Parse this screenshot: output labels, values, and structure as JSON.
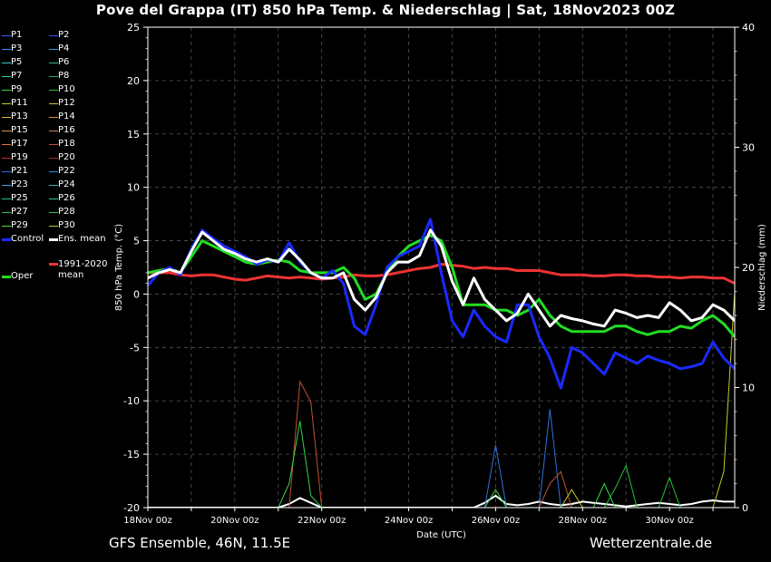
{
  "title": "Pove del Grappa  (IT)  850 hPa Temp. & Niederschlag | Sat, 18Nov2023 00Z",
  "footer": {
    "left": "GFS Ensemble, 46N, 11.5E",
    "right": "Wetterzentrale.de"
  },
  "legend": {
    "items": [
      {
        "label": "P1",
        "color": "#3a5cff"
      },
      {
        "label": "P2",
        "color": "#2f4cff"
      },
      {
        "label": "P3",
        "color": "#3f8fff"
      },
      {
        "label": "P4",
        "color": "#2a9ad8"
      },
      {
        "label": "P5",
        "color": "#33c6d0"
      },
      {
        "label": "P6",
        "color": "#2dbf80"
      },
      {
        "label": "P7",
        "color": "#2fd0a8"
      },
      {
        "label": "P8",
        "color": "#26a860"
      },
      {
        "label": "P9",
        "color": "#34d84a"
      },
      {
        "label": "P10",
        "color": "#22c234"
      },
      {
        "label": "P11",
        "color": "#b8d030"
      },
      {
        "label": "P12",
        "color": "#d8c040"
      },
      {
        "label": "P13",
        "color": "#e0b838"
      },
      {
        "label": "P14",
        "color": "#e0902a"
      },
      {
        "label": "P15",
        "color": "#d89a58"
      },
      {
        "label": "P16",
        "color": "#c88860"
      },
      {
        "label": "P17",
        "color": "#e07848"
      },
      {
        "label": "P18",
        "color": "#c05030"
      },
      {
        "label": "P19",
        "color": "#b83030"
      },
      {
        "label": "P20",
        "color": "#a82020"
      },
      {
        "label": "P21",
        "color": "#3070e0"
      },
      {
        "label": "P22",
        "color": "#2a8ae8"
      },
      {
        "label": "P23",
        "color": "#46a0e0"
      },
      {
        "label": "P24",
        "color": "#30b0c0"
      },
      {
        "label": "P25",
        "color": "#20c088"
      },
      {
        "label": "P26",
        "color": "#28d098"
      },
      {
        "label": "P27",
        "color": "#30b860"
      },
      {
        "label": "P28",
        "color": "#38c050"
      },
      {
        "label": "P29",
        "color": "#60d840"
      },
      {
        "label": "P30",
        "color": "#c8c828"
      },
      {
        "label": "Control",
        "color": "#1a2aff"
      },
      {
        "label": "Ens. mean",
        "color": "#ffffff"
      }
    ],
    "oper": {
      "label": "Oper",
      "color": "#22dd22"
    },
    "climate": {
      "label": "1991-2020 mean",
      "line1": "1991-2020",
      "line2": "mean",
      "color": "#ee3333"
    }
  },
  "chart_data": {
    "type": "line",
    "xlabel": "Date (UTC)",
    "ylabel": "850 hPa Temp. (°C)",
    "y2label": "Niederschlag (mm)",
    "ylim": [
      -20,
      25
    ],
    "yticks": [
      -20,
      -15,
      -10,
      -5,
      0,
      5,
      10,
      15,
      20,
      25
    ],
    "y2lim": [
      0,
      40
    ],
    "y2ticks": [
      0,
      10,
      20,
      30,
      40
    ],
    "xlim": [
      "2023-11-18T00",
      "2023-12-01T12"
    ],
    "xticks": [
      {
        "date": "2023-11-18",
        "label": "18Nov 00z"
      },
      {
        "date": "2023-11-20",
        "label": "20Nov 00z"
      },
      {
        "date": "2023-11-22",
        "label": "22Nov 00z"
      },
      {
        "date": "2023-11-24",
        "label": "24Nov 00z"
      },
      {
        "date": "2023-11-26",
        "label": "26Nov 00z"
      },
      {
        "date": "2023-11-28",
        "label": "28Nov 00z"
      },
      {
        "date": "2023-11-30",
        "label": "30Nov 00z"
      }
    ],
    "grid": true,
    "x": [
      "2023-11-18T00",
      "2023-11-18T06",
      "2023-11-18T12",
      "2023-11-18T18",
      "2023-11-19T00",
      "2023-11-19T06",
      "2023-11-19T12",
      "2023-11-19T18",
      "2023-11-20T00",
      "2023-11-20T06",
      "2023-11-20T12",
      "2023-11-20T18",
      "2023-11-21T00",
      "2023-11-21T06",
      "2023-11-21T12",
      "2023-11-21T18",
      "2023-11-22T00",
      "2023-11-22T06",
      "2023-11-22T12",
      "2023-11-22T18",
      "2023-11-23T00",
      "2023-11-23T06",
      "2023-11-23T12",
      "2023-11-23T18",
      "2023-11-24T00",
      "2023-11-24T06",
      "2023-11-24T12",
      "2023-11-24T18",
      "2023-11-25T00",
      "2023-11-25T06",
      "2023-11-25T12",
      "2023-11-25T18",
      "2023-11-26T00",
      "2023-11-26T06",
      "2023-11-26T12",
      "2023-11-26T18",
      "2023-11-27T00",
      "2023-11-27T06",
      "2023-11-27T12",
      "2023-11-27T18",
      "2023-11-28T00",
      "2023-11-28T06",
      "2023-11-28T12",
      "2023-11-28T18",
      "2023-11-29T00",
      "2023-11-29T06",
      "2023-11-29T12",
      "2023-11-29T18",
      "2023-11-30T00",
      "2023-11-30T06",
      "2023-11-30T12",
      "2023-11-30T18",
      "2023-12-01T00",
      "2023-12-01T06",
      "2023-12-01T12"
    ],
    "temperature_series": [
      {
        "name": "Ens. mean",
        "color": "#ffffff",
        "width": 3,
        "values": [
          1.5,
          2.0,
          2.3,
          2.0,
          4.0,
          5.8,
          5.0,
          4.2,
          3.8,
          3.3,
          3.0,
          3.3,
          3.0,
          4.2,
          3.2,
          2.0,
          1.5,
          1.5,
          2.0,
          -0.5,
          -1.5,
          -0.3,
          2.0,
          3.0,
          3.0,
          3.6,
          6.0,
          4.5,
          1.2,
          -1.0,
          1.5,
          -0.5,
          -1.5,
          -2.5,
          -1.8,
          0.0,
          -1.5,
          -3.0,
          -2.0,
          -2.3,
          -2.5,
          -2.8,
          -3.0,
          -1.5,
          -1.8,
          -2.2,
          -2.0,
          -2.2,
          -0.8,
          -1.5,
          -2.5,
          -2.2,
          -1.0,
          -1.5,
          -2.5
        ]
      },
      {
        "name": "Control",
        "color": "#1a2aff",
        "width": 3,
        "values": [
          0.8,
          2.0,
          2.5,
          1.8,
          4.2,
          6.0,
          5.2,
          4.5,
          4.0,
          3.5,
          2.8,
          3.2,
          3.0,
          4.8,
          3.0,
          2.0,
          1.5,
          2.2,
          1.0,
          -3.0,
          -3.8,
          -1.0,
          2.5,
          3.5,
          4.0,
          4.5,
          7.0,
          2.0,
          -2.5,
          -4.0,
          -1.5,
          -3.0,
          -4.0,
          -4.5,
          -1.0,
          -1.0,
          -4.0,
          -6.0,
          -8.8,
          -5.0,
          -5.5,
          -6.5,
          -7.5,
          -5.5,
          -6.0,
          -6.5,
          -5.8,
          -6.2,
          -6.5,
          -7.0,
          -6.8,
          -6.5,
          -4.5,
          -6.0,
          -7.0
        ]
      },
      {
        "name": "Oper",
        "color": "#22dd22",
        "width": 3,
        "values": [
          2.0,
          2.2,
          2.4,
          2.0,
          3.5,
          5.0,
          4.5,
          4.0,
          3.5,
          3.0,
          2.8,
          3.0,
          3.2,
          3.0,
          2.2,
          2.0,
          2.0,
          2.0,
          2.5,
          1.5,
          -0.5,
          0.0,
          2.0,
          3.5,
          4.5,
          5.0,
          5.5,
          5.0,
          2.5,
          -1.0,
          -1.0,
          -1.0,
          -1.5,
          -1.5,
          -2.0,
          -1.5,
          -0.5,
          -2.0,
          -3.0,
          -3.5,
          -3.5,
          -3.5,
          -3.5,
          -3.0,
          -3.0,
          -3.5,
          -3.8,
          -3.5,
          -3.5,
          -3.0,
          -3.2,
          -2.5,
          -2.0,
          -2.8,
          -4.0
        ]
      },
      {
        "name": "1991-2020 mean",
        "color": "#ee3333",
        "width": 3,
        "values": [
          2.0,
          2.0,
          2.0,
          1.8,
          1.7,
          1.8,
          1.8,
          1.6,
          1.4,
          1.3,
          1.5,
          1.7,
          1.6,
          1.5,
          1.6,
          1.5,
          1.4,
          1.5,
          1.6,
          1.8,
          1.7,
          1.7,
          1.8,
          2.0,
          2.2,
          2.4,
          2.5,
          2.8,
          2.7,
          2.6,
          2.4,
          2.5,
          2.4,
          2.4,
          2.2,
          2.2,
          2.2,
          2.0,
          1.8,
          1.8,
          1.8,
          1.7,
          1.7,
          1.8,
          1.8,
          1.7,
          1.7,
          1.6,
          1.6,
          1.5,
          1.6,
          1.6,
          1.5,
          1.5,
          1.0
        ]
      }
    ],
    "precipitation_series": [
      {
        "name": "Ens. mean",
        "color": "#ffffff",
        "values": [
          0,
          0,
          0,
          0,
          0,
          0,
          0,
          0,
          0,
          0,
          0,
          0,
          0,
          0.3,
          0.8,
          0.4,
          0,
          0,
          0,
          0,
          0,
          0,
          0,
          0,
          0,
          0,
          0,
          0,
          0,
          0,
          0,
          0.4,
          1.0,
          0.3,
          0.2,
          0.3,
          0.5,
          0.3,
          0.2,
          0.3,
          0.5,
          0.4,
          0.3,
          0.2,
          0.1,
          0.2,
          0.3,
          0.4,
          0.3,
          0.2,
          0.3,
          0.5,
          0.6,
          0.5,
          0.5
        ]
      },
      {
        "name": "P18",
        "color": "#c05030",
        "values": [
          0,
          0,
          0,
          0,
          0,
          0,
          0,
          0,
          0,
          0,
          0,
          0,
          0,
          0,
          10.5,
          8.8,
          0,
          0,
          0,
          0,
          0,
          0,
          0,
          0,
          0,
          0,
          0,
          0,
          0,
          0,
          0,
          0,
          0,
          0,
          0,
          0,
          0,
          2.0,
          3.0,
          0,
          0,
          0,
          0,
          0,
          0,
          0,
          0,
          0,
          0,
          0,
          0,
          0,
          0,
          0,
          0
        ]
      },
      {
        "name": "P9",
        "color": "#34d84a",
        "values": [
          0,
          0,
          0,
          0,
          0,
          0,
          0,
          0,
          0,
          0,
          0,
          0,
          0,
          2.0,
          7.2,
          1.0,
          0,
          0,
          0,
          0,
          0,
          0,
          0,
          0,
          0,
          0,
          0,
          0,
          0,
          0,
          0,
          0,
          1.5,
          0,
          0,
          0,
          0,
          0,
          0,
          0,
          0,
          0,
          2.0,
          0,
          0,
          0,
          0,
          0,
          0,
          0,
          0,
          0,
          0,
          0,
          0
        ]
      },
      {
        "name": "P21",
        "color": "#3070e0",
        "values": [
          0,
          0,
          0,
          0,
          0,
          0,
          0,
          0,
          0,
          0,
          0,
          0,
          0,
          0,
          0,
          0,
          0,
          0,
          0,
          0,
          0,
          0,
          0,
          0,
          0,
          0,
          0,
          0,
          0,
          0,
          0,
          0,
          5.2,
          0,
          0,
          0,
          0,
          8.2,
          0,
          0,
          0,
          0,
          0,
          0,
          0,
          0,
          0,
          0,
          0,
          0,
          0,
          0,
          0,
          0,
          0
        ]
      },
      {
        "name": "P30",
        "color": "#c8c828",
        "values": [
          0,
          0,
          0,
          0,
          0,
          0,
          0,
          0,
          0,
          0,
          0,
          0,
          0,
          0,
          0,
          0,
          0,
          0,
          0,
          0,
          0,
          0,
          0,
          0,
          0,
          0,
          0,
          0,
          0,
          0,
          0,
          0,
          0,
          0,
          0,
          0,
          0,
          0,
          0,
          1.5,
          0,
          0,
          0,
          0,
          0,
          0,
          0,
          0,
          0,
          0,
          0,
          0,
          0,
          3.0,
          18.0
        ]
      },
      {
        "name": "P10",
        "color": "#22c234",
        "values": [
          0,
          0,
          0,
          0,
          0,
          0,
          0,
          0,
          0,
          0,
          0,
          0,
          0,
          0,
          0,
          0,
          0,
          0,
          0,
          0,
          0,
          0,
          0,
          0,
          0,
          0,
          0,
          0,
          0,
          0,
          0,
          0,
          0,
          0,
          0,
          0,
          0,
          0,
          0,
          0,
          0,
          0,
          0,
          1.6,
          3.5,
          0,
          0,
          0,
          2.5,
          0,
          0,
          0,
          0,
          0,
          0
        ]
      }
    ]
  }
}
